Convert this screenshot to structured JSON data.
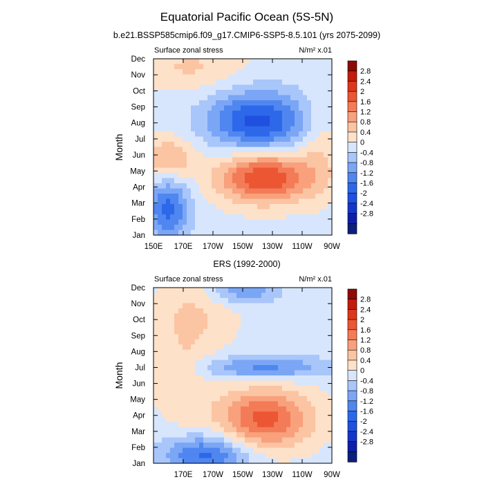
{
  "title": "Equatorial Pacific Ocean (5S-5N)",
  "colors": {
    "-3.2": "#0b1f7c",
    "-2.8": "#0d1fa7",
    "-2.4": "#1436c9",
    "-2.0": "#1f50e0",
    "-1.6": "#2e68ea",
    "-1.2": "#4f86f0",
    "-0.8": "#7aa6f5",
    "-0.4": "#a9c6fa",
    "0.0": "#d7e6fd",
    "0.4": "#fde1c9",
    "0.8": "#fbc4a3",
    "1.2": "#f8a17c",
    "1.6": "#f47b57",
    "2.0": "#ec5633",
    "2.4": "#dc371b",
    "2.8": "#c21c0c",
    "3.2": "#8e0a06"
  },
  "colorbar_labels": [
    "2.8",
    "2.4",
    "2",
    "1.6",
    "1.2",
    "0.8",
    "0.4",
    "0",
    "-0.4",
    "-0.8",
    "-1.2",
    "-1.6",
    "-2",
    "-2.4",
    "-2.8"
  ],
  "chart_data": [
    {
      "type": "heatmap",
      "title": "b.e21.BSSP585cmip6.f09_g17.CMIP6-SSP5-8.5.101 (yrs 2075-2099)",
      "left_string": "Surface zonal stress",
      "right_string": "N/m² x.01",
      "ylabel": "Month",
      "ytick_labels": [
        "Jan",
        "Feb",
        "Mar",
        "Apr",
        "May",
        "Jun",
        "Jul",
        "Aug",
        "Sep",
        "Oct",
        "Nov",
        "Dec"
      ],
      "xtick_labels": [
        "150E",
        "170E",
        "170W",
        "150W",
        "130W",
        "110W",
        "90W"
      ],
      "xtick_values": [
        150,
        170,
        190,
        210,
        230,
        250,
        270
      ],
      "xlim": [
        150,
        270
      ],
      "months": [
        1,
        12
      ],
      "features": [
        {
          "lon": 160,
          "month": 2.6,
          "value": -1.6,
          "sx": 10,
          "sy": 1.3
        },
        {
          "lon": 160,
          "month": 5.8,
          "value": 1.0,
          "sx": 12,
          "sy": 0.9
        },
        {
          "lon": 225,
          "month": 4.6,
          "value": 2.2,
          "sx": 22,
          "sy": 1.1
        },
        {
          "lon": 220,
          "month": 8.1,
          "value": -2.0,
          "sx": 23,
          "sy": 1.3
        },
        {
          "lon": 175,
          "month": 11.5,
          "value": 0.6,
          "sx": 25,
          "sy": 1.0
        },
        {
          "lon": 262,
          "month": 6.5,
          "value": 0.5,
          "sx": 9,
          "sy": 2.0
        }
      ]
    },
    {
      "type": "heatmap",
      "title": "ERS (1992-2000)",
      "left_string": "Surface zonal stress",
      "right_string": "N/m² x.01",
      "ylabel": "Month",
      "ytick_labels": [
        "Jan",
        "Feb",
        "Mar",
        "Apr",
        "May",
        "Jun",
        "Jul",
        "Aug",
        "Sep",
        "Oct",
        "Nov",
        "Dec"
      ],
      "xtick_labels": [
        "170E",
        "170W",
        "150W",
        "130W",
        "110W",
        "90W"
      ],
      "xtick_values": [
        170,
        190,
        210,
        230,
        250,
        270
      ],
      "xlim": [
        150,
        270
      ],
      "months": [
        1,
        12
      ],
      "features": [
        {
          "lon": 185,
          "month": 1.5,
          "value": -1.6,
          "sx": 20,
          "sy": 0.9
        },
        {
          "lon": 225,
          "month": 3.8,
          "value": 1.9,
          "sx": 22,
          "sy": 1.3
        },
        {
          "lon": 225,
          "month": 7.0,
          "value": -1.2,
          "sx": 30,
          "sy": 0.5
        },
        {
          "lon": 210,
          "month": 11.8,
          "value": -1.0,
          "sx": 16,
          "sy": 0.6
        },
        {
          "lon": 180,
          "month": 10.5,
          "value": 0.5,
          "sx": 20,
          "sy": 1.5
        },
        {
          "lon": 170,
          "month": 6.8,
          "value": 0.5,
          "sx": 14,
          "sy": 2.5
        }
      ]
    }
  ]
}
